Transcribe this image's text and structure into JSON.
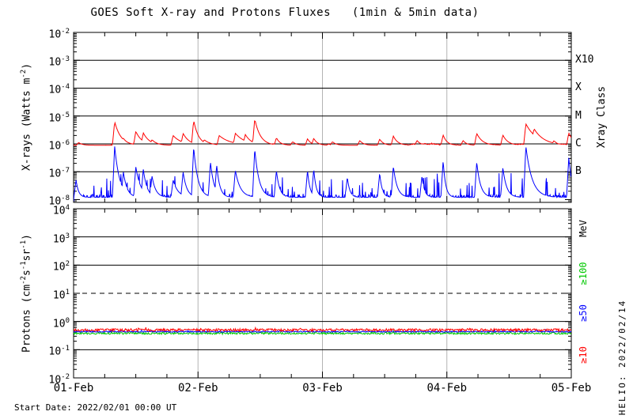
{
  "title": "GOES Soft X-ray and Protons Fluxes   (1min & 5min data)",
  "footer": {
    "start_date": "Start Date: 2022/02/01 00:00 UT",
    "credit": "HELIO: 2022/02/14"
  },
  "colors": {
    "background": "#ffffff",
    "axis": "#000000",
    "day_grid": "#b3b3b3",
    "xray_red": "#ff0000",
    "xray_blue": "#0000ff",
    "p10_red": "#ff0000",
    "p50_blue": "#0000ff",
    "p100_green": "#00c800"
  },
  "chart_data": {
    "type": "line",
    "title": "GOES Soft X-ray and Protons Fluxes (1min & 5min data)",
    "x_axis": {
      "start_label": "Start Date: 2022/02/01 00:00 UT",
      "span_days": 4,
      "tick_labels": [
        "01-Feb",
        "02-Feb",
        "03-Feb",
        "04-Feb",
        "05-Feb"
      ],
      "minor_tick_hours": 6,
      "day_gridlines_at": [
        1,
        2,
        3
      ]
    },
    "panels": [
      {
        "id": "xray",
        "ylabel": {
          "pre": "X-rays (Watts m",
          "sup1": "-2",
          "post": ")"
        },
        "ylog_top": -2,
        "ylog_bottom": -8.1,
        "yticks_exp": [
          -2,
          -3,
          -4,
          -5,
          -6,
          -7,
          -8
        ],
        "gridlines": [
          {
            "exp": -3,
            "style": "solid"
          },
          {
            "exp": -4,
            "style": "solid"
          },
          {
            "exp": -5,
            "style": "solid"
          },
          {
            "exp": -6,
            "style": "solid"
          },
          {
            "exp": -7,
            "style": "solid"
          }
        ],
        "right_axis": {
          "title": "Xray Class",
          "labels": [
            {
              "text": "X10",
              "exp": -3
            },
            {
              "text": "X",
              "exp": -4
            },
            {
              "text": "M",
              "exp": -5
            },
            {
              "text": "C",
              "exp": -6
            },
            {
              "text": "B",
              "exp": -7
            }
          ]
        },
        "series": [
          {
            "label": "xray-long-red",
            "color": "xray_red",
            "style": "smooth",
            "baseline_log": -6.05,
            "noise_log": 0.05,
            "flares_t_peak_decay": [
              [
                0.04,
                -5.95,
                0.03
              ],
              [
                0.33,
                -5.2,
                0.05
              ],
              [
                0.4,
                -5.8,
                0.04
              ],
              [
                0.5,
                -5.55,
                0.05
              ],
              [
                0.56,
                -5.6,
                0.05
              ],
              [
                0.63,
                -5.85,
                0.04
              ],
              [
                0.8,
                -5.7,
                0.07
              ],
              [
                0.88,
                -5.62,
                0.05
              ],
              [
                0.965,
                -5.15,
                0.04
              ],
              [
                1.05,
                -5.85,
                0.05
              ],
              [
                1.17,
                -5.7,
                0.09
              ],
              [
                1.3,
                -5.62,
                0.08
              ],
              [
                1.38,
                -5.66,
                0.05
              ],
              [
                1.456,
                -5.1,
                0.045
              ],
              [
                1.63,
                -5.78,
                0.03
              ],
              [
                1.76,
                -5.92,
                0.03
              ],
              [
                1.88,
                -5.82,
                0.03
              ],
              [
                1.93,
                -5.8,
                0.03
              ],
              [
                2.08,
                -5.92,
                0.03
              ],
              [
                2.3,
                -5.88,
                0.03
              ],
              [
                2.46,
                -5.83,
                0.03
              ],
              [
                2.57,
                -5.72,
                0.035
              ],
              [
                2.76,
                -5.88,
                0.03
              ],
              [
                2.97,
                -5.68,
                0.03
              ],
              [
                3.13,
                -5.88,
                0.03
              ],
              [
                3.24,
                -5.62,
                0.045
              ],
              [
                3.45,
                -5.68,
                0.04
              ],
              [
                3.635,
                -5.28,
                0.09
              ],
              [
                3.7,
                -5.45,
                0.08
              ],
              [
                3.86,
                -5.88,
                0.03
              ],
              [
                3.98,
                -5.6,
                0.04
              ]
            ]
          },
          {
            "label": "xray-short-blue",
            "color": "xray_blue",
            "style": "spiky",
            "baseline_log": -7.92,
            "noise_log": 0.28,
            "flares_t_peak_decay": [
              [
                0.02,
                -7.3,
                0.02
              ],
              [
                0.33,
                -6.08,
                0.04
              ],
              [
                0.4,
                -7.0,
                0.03
              ],
              [
                0.5,
                -6.82,
                0.04
              ],
              [
                0.56,
                -6.9,
                0.03
              ],
              [
                0.63,
                -7.15,
                0.03
              ],
              [
                0.8,
                -7.3,
                0.04
              ],
              [
                0.88,
                -7.0,
                0.03
              ],
              [
                0.965,
                -6.12,
                0.035
              ],
              [
                1.1,
                -6.65,
                0.03
              ],
              [
                1.15,
                -6.75,
                0.025
              ],
              [
                1.3,
                -6.95,
                0.04
              ],
              [
                1.456,
                -6.18,
                0.035
              ],
              [
                1.63,
                -6.95,
                0.025
              ],
              [
                1.88,
                -6.95,
                0.02
              ],
              [
                1.93,
                -6.9,
                0.02
              ],
              [
                2.2,
                -7.2,
                0.02
              ],
              [
                2.46,
                -7.05,
                0.02
              ],
              [
                2.57,
                -6.8,
                0.03
              ],
              [
                2.8,
                -7.15,
                0.02
              ],
              [
                2.97,
                -6.6,
                0.02
              ],
              [
                3.24,
                -6.65,
                0.03
              ],
              [
                3.45,
                -6.85,
                0.03
              ],
              [
                3.635,
                -6.08,
                0.05
              ],
              [
                3.98,
                -6.5,
                0.03
              ]
            ]
          }
        ]
      },
      {
        "id": "protons",
        "ylabel": {
          "pre": "Protons (cm",
          "sup1": "-2",
          "mid1": "s",
          "sup2": "-1",
          "mid2": "sr",
          "sup3": "-1",
          "post": ")"
        },
        "ylog_top": 4,
        "ylog_bottom": -2,
        "yticks_exp": [
          4,
          3,
          2,
          1,
          0,
          -1,
          -2
        ],
        "gridlines": [
          {
            "exp": 3,
            "style": "solid"
          },
          {
            "exp": 2,
            "style": "solid"
          },
          {
            "exp": 1,
            "style": "dashed"
          },
          {
            "exp": 0,
            "style": "solid"
          },
          {
            "exp": -1,
            "style": "solid"
          }
        ],
        "right_axis": {
          "title": "MeV",
          "labels": [
            {
              "text": "≥100",
              "color": "p100_green"
            },
            {
              "text": "≥50",
              "color": "p50_blue"
            },
            {
              "text": "≥10",
              "color": "p10_red"
            }
          ]
        },
        "series": [
          {
            "label": "protons-ge100-MeV",
            "color": "p100_green",
            "style": "noisy",
            "baseline_log": -0.42,
            "noise_log": 0.035,
            "flares_t_peak_decay": []
          },
          {
            "label": "protons-ge50-MeV",
            "color": "p50_blue",
            "style": "noisy",
            "baseline_log": -0.36,
            "noise_log": 0.02,
            "flares_t_peak_decay": []
          },
          {
            "label": "protons-ge10-MeV",
            "color": "p10_red",
            "style": "noisy",
            "baseline_log": -0.3,
            "noise_log": 0.045,
            "flares_t_peak_decay": []
          }
        ]
      }
    ]
  }
}
